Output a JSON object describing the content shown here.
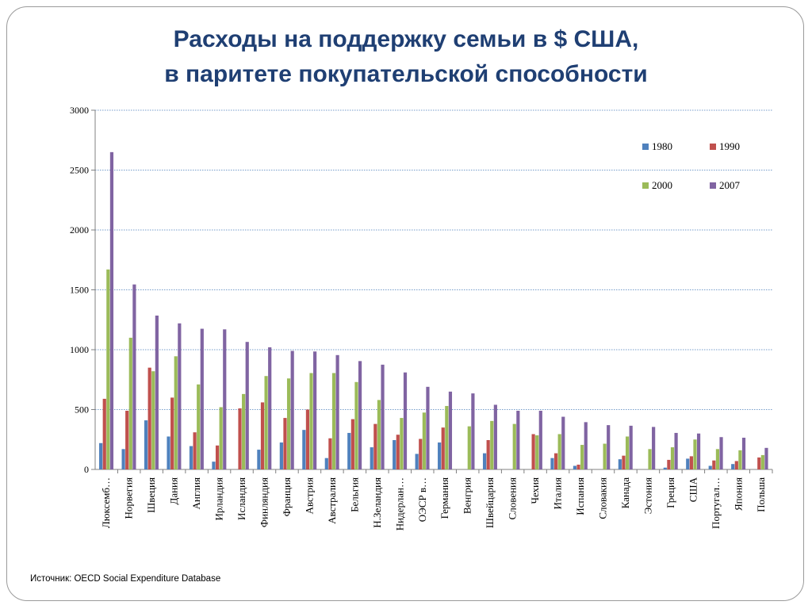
{
  "title": {
    "line1": "Расходы на поддержку семьи в $ США,",
    "line2": "в паритете покупательской способности"
  },
  "source": "Источник: OECD Social Expenditure Database",
  "chart_data": {
    "type": "bar",
    "title": "Расходы на поддержку семьи в $ США, в паритете покупательской способности",
    "xlabel": "",
    "ylabel": "",
    "ylim": [
      0,
      3000
    ],
    "yticks": [
      0,
      500,
      1000,
      1500,
      2000,
      2500,
      3000
    ],
    "grid": true,
    "legend_position": "top-right",
    "categories": [
      "Люксемб…",
      "Норвегия",
      "Швеция",
      "Дания",
      "Англия",
      "Ирландия",
      "Исландия",
      "Финляндия",
      "Франция",
      "Австрия",
      "Австралия",
      "Бельгия",
      "Н.Зеландия",
      "Нидерлан…",
      "ОЭСР в…",
      "Германия",
      "Венгрия",
      "Швейцария",
      "Словения",
      "Чехия",
      "Италия",
      "Испания",
      "Словакия",
      "Канада",
      "Эстония",
      "Греция",
      "США",
      "Португал…",
      "Япония",
      "Польша"
    ],
    "series": [
      {
        "name": "1980",
        "color": "#4f81bd",
        "values": [
          220,
          170,
          410,
          275,
          195,
          65,
          0,
          165,
          225,
          330,
          95,
          305,
          185,
          245,
          130,
          225,
          0,
          135,
          0,
          0,
          95,
          30,
          0,
          85,
          0,
          15,
          90,
          30,
          45,
          0
        ]
      },
      {
        "name": "1990",
        "color": "#c0504d",
        "values": [
          590,
          490,
          850,
          600,
          310,
          200,
          510,
          560,
          430,
          500,
          260,
          420,
          380,
          290,
          255,
          350,
          0,
          245,
          0,
          295,
          135,
          40,
          0,
          115,
          0,
          80,
          110,
          75,
          70,
          100
        ]
      },
      {
        "name": "2000",
        "color": "#9bbb59",
        "values": [
          1670,
          1100,
          820,
          945,
          710,
          520,
          630,
          780,
          760,
          805,
          805,
          730,
          580,
          430,
          475,
          530,
          360,
          405,
          380,
          285,
          295,
          205,
          215,
          275,
          170,
          185,
          250,
          170,
          160,
          120
        ]
      },
      {
        "name": "2007",
        "color": "#8064a2",
        "values": [
          2650,
          1545,
          1285,
          1220,
          1175,
          1170,
          1065,
          1020,
          990,
          985,
          955,
          905,
          875,
          810,
          690,
          650,
          635,
          540,
          490,
          490,
          440,
          395,
          370,
          365,
          355,
          305,
          300,
          270,
          265,
          180
        ]
      }
    ]
  }
}
